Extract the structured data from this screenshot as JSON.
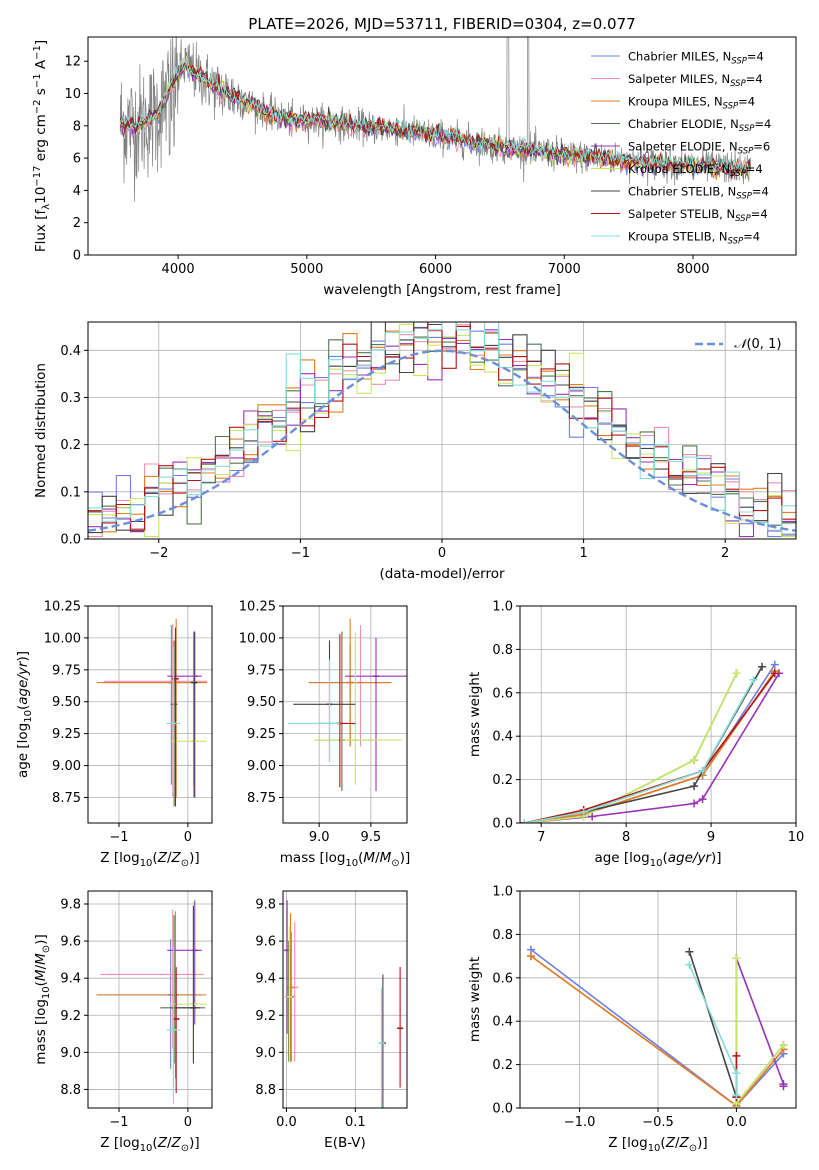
{
  "figure": {
    "title": "PLATE=2026, MJD=53711, FIBERID=0304, z=0.077"
  },
  "colors": {
    "Chabrier MILES": "#6f7fe6",
    "Salpeter MILES": "#f090b0",
    "Kroupa MILES": "#e07e22",
    "Chabrier ELODIE": "#4f7a4f",
    "Salpeter ELODIE": "#9a32b8",
    "Kroupa ELODIE": "#c8e86a",
    "Chabrier STELIB": "#444444",
    "Salpeter STELIB": "#b41414",
    "Kroupa STELIB": "#86dcd8",
    "data": "#808080",
    "normal": "#6a90dc"
  },
  "chart_data": [
    {
      "id": "spectrum",
      "type": "line",
      "title": "PLATE=2026, MJD=53711, FIBERID=0304, z=0.077",
      "xlabel": "wavelength [Angstrom, rest frame]",
      "ylabel": "Flux [f_λ 10^-17 erg cm^-2 s^-1 A^-1]",
      "xlim": [
        3300,
        8800
      ],
      "ylim": [
        0,
        13.5
      ],
      "xticks": [
        4000,
        5000,
        6000,
        7000,
        8000
      ],
      "yticks": [
        0,
        2,
        4,
        6,
        8,
        10,
        12
      ],
      "grid": false,
      "legend_position": "upper right",
      "legend": [
        {
          "label": "Chabrier MILES, N_SSP=4"
        },
        {
          "label": "Salpeter MILES, N_SSP=4"
        },
        {
          "label": "Kroupa MILES, N_SSP=4"
        },
        {
          "label": "Chabrier ELODIE, N_SSP=4"
        },
        {
          "label": "Salpeter ELODIE, N_SSP=6"
        },
        {
          "label": "Kroupa ELODIE, N_SSP=4"
        },
        {
          "label": "Chabrier STELIB, N_SSP=4"
        },
        {
          "label": "Salpeter STELIB, N_SSP=4"
        },
        {
          "label": "Kroupa STELIB, N_SSP=4"
        }
      ],
      "model_continuum": {
        "x": [
          3550,
          3650,
          3750,
          3850,
          3950,
          4050,
          4150,
          4300,
          4500,
          4700,
          4900,
          5100,
          5300,
          5500,
          5700,
          5900,
          6100,
          6300,
          6500,
          6700,
          6900,
          7100,
          7300,
          7500,
          7700,
          7900,
          8100,
          8300,
          8500
        ],
        "y": [
          8.2,
          8.0,
          8.3,
          8.8,
          10.5,
          11.8,
          11.2,
          10.3,
          9.6,
          8.8,
          8.3,
          8.3,
          8.1,
          7.9,
          7.8,
          7.5,
          7.3,
          7.0,
          6.7,
          6.5,
          6.3,
          6.1,
          6.0,
          5.8,
          5.7,
          5.6,
          5.5,
          5.4,
          5.3
        ]
      },
      "data_range": [
        3550,
        8450
      ]
    },
    {
      "id": "residuals",
      "type": "line",
      "xlabel": "(data-model)/error",
      "ylabel": "Normed distribution",
      "xlim": [
        -2.5,
        2.5
      ],
      "ylim": [
        0,
        0.46
      ],
      "xticks": [
        -2,
        -1,
        0,
        1,
        2
      ],
      "yticks": [
        0.0,
        0.1,
        0.2,
        0.3,
        0.4
      ],
      "grid": true,
      "legend_position": "upper right",
      "legend": [
        {
          "label": "N(0,1)"
        }
      ],
      "normal": {
        "mean": 0,
        "sigma": 1
      }
    },
    {
      "id": "age-vs-Z",
      "type": "scatter",
      "xlabel": "Z [log10(Z/Z_sun)]",
      "ylabel": "age [log10(age/yr)]",
      "xlim": [
        -1.45,
        0.35
      ],
      "ylim": [
        8.55,
        10.25
      ],
      "xticks": [
        -1,
        0
      ],
      "yticks": [
        8.75,
        9.0,
        9.25,
        9.5,
        9.75,
        10.0,
        10.25
      ],
      "grid": true,
      "points": [
        {
          "model": "Chabrier MILES",
          "x": -0.24,
          "y": 9.65,
          "xerr": [
            1.0,
            0.45
          ],
          "yerr": [
            0.8,
            0.45
          ]
        },
        {
          "model": "Salpeter MILES",
          "x": -0.22,
          "y": 9.66,
          "xerr": [
            1.0,
            0.5
          ],
          "yerr": [
            0.9,
            0.45
          ]
        },
        {
          "model": "Kroupa MILES",
          "x": -0.17,
          "y": 9.65,
          "xerr": [
            1.15,
            0.45
          ],
          "yerr": [
            0.9,
            0.5
          ]
        },
        {
          "model": "Chabrier ELODIE",
          "x": -0.2,
          "y": 9.48,
          "xerr": [
            0.05,
            0.05
          ],
          "yerr": [
            0.8,
            0.5
          ]
        },
        {
          "model": "Salpeter ELODIE",
          "x": 0.1,
          "y": 9.7,
          "xerr": [
            0.4,
            0.1
          ],
          "yerr": [
            0.95,
            0.35
          ]
        },
        {
          "model": "Kroupa ELODIE",
          "x": 0.08,
          "y": 9.19,
          "xerr": [
            0.35,
            0.2
          ],
          "yerr": [
            0.35,
            0.85
          ]
        },
        {
          "model": "Chabrier STELIB",
          "x": 0.09,
          "y": 9.65,
          "xerr": [
            0.05,
            0.05
          ],
          "yerr": [
            0.9,
            0.4
          ]
        },
        {
          "model": "Salpeter STELIB",
          "x": -0.18,
          "y": 9.68,
          "xerr": [
            0.05,
            0.05
          ],
          "yerr": [
            1.0,
            0.4
          ]
        },
        {
          "model": "Kroupa STELIB",
          "x": -0.21,
          "y": 9.33,
          "xerr": [
            0.1,
            0.1
          ],
          "yerr": [
            0.55,
            0.6
          ]
        }
      ]
    },
    {
      "id": "age-vs-mass",
      "type": "scatter",
      "xlabel": "mass [log10(M/M_sun)]",
      "ylabel": "",
      "xlim": [
        8.65,
        9.85
      ],
      "ylim": [
        8.55,
        10.25
      ],
      "xticks": [
        9.0,
        9.5
      ],
      "yticks": [
        8.75,
        9.0,
        9.25,
        9.5,
        9.75,
        10.0,
        10.25
      ],
      "grid": true,
      "points": [
        {
          "model": "Chabrier MILES",
          "x": 9.3,
          "y": 9.65,
          "xerr": [
            0.4,
            0.35
          ],
          "yerr": [
            0.5,
            0.3
          ]
        },
        {
          "model": "Salpeter MILES",
          "x": 9.4,
          "y": 9.65,
          "xerr": [
            0.35,
            0.3
          ],
          "yerr": [
            0.5,
            0.45
          ]
        },
        {
          "model": "Kroupa MILES",
          "x": 9.3,
          "y": 9.65,
          "xerr": [
            0.4,
            0.4
          ],
          "yerr": [
            0.5,
            0.5
          ]
        },
        {
          "model": "Chabrier ELODIE",
          "x": 9.22,
          "y": 9.2,
          "xerr": [
            0.25,
            0.3
          ],
          "yerr": [
            0.4,
            0.85
          ]
        },
        {
          "model": "Salpeter ELODIE",
          "x": 9.55,
          "y": 9.7,
          "xerr": [
            0.3,
            0.3
          ],
          "yerr": [
            0.9,
            0.3
          ]
        },
        {
          "model": "Kroupa ELODIE",
          "x": 9.35,
          "y": 9.2,
          "xerr": [
            0.4,
            0.45
          ],
          "yerr": [
            0.35,
            0.85
          ]
        },
        {
          "model": "Chabrier STELIB",
          "x": 9.1,
          "y": 9.48,
          "xerr": [
            0.35,
            0.25
          ],
          "yerr": [
            0.45,
            0.5
          ]
        },
        {
          "model": "Salpeter STELIB",
          "x": 9.2,
          "y": 9.33,
          "xerr": [
            0.2,
            0.15
          ],
          "yerr": [
            0.5,
            0.7
          ]
        },
        {
          "model": "Kroupa STELIB",
          "x": 9.1,
          "y": 9.33,
          "xerr": [
            0.4,
            0.1
          ],
          "yerr": [
            0.3,
            0.5
          ]
        }
      ]
    },
    {
      "id": "weight-vs-age",
      "type": "line",
      "xlabel": "age [log10(age/yr)]",
      "ylabel": "mass weight",
      "xlim": [
        6.75,
        10.0
      ],
      "ylim": [
        0,
        1.0
      ],
      "xticks": [
        7,
        8,
        9,
        10
      ],
      "yticks": [
        0.0,
        0.2,
        0.4,
        0.6,
        0.8,
        1.0
      ],
      "grid": true,
      "series": [
        {
          "model": "Chabrier MILES",
          "x": [
            6.8,
            7.5,
            8.9,
            9.75
          ],
          "y": [
            0.0,
            0.04,
            0.22,
            0.73
          ]
        },
        {
          "model": "Salpeter MILES",
          "x": [
            6.8,
            7.5,
            8.9,
            9.75
          ],
          "y": [
            0.0,
            0.04,
            0.22,
            0.7
          ]
        },
        {
          "model": "Kroupa MILES",
          "x": [
            6.8,
            7.5,
            8.9,
            9.75
          ],
          "y": [
            0.0,
            0.04,
            0.22,
            0.7
          ]
        },
        {
          "model": "Chabrier ELODIE",
          "x": [
            6.8,
            7.5,
            8.8,
            9.3
          ],
          "y": [
            0.0,
            0.03,
            0.29,
            0.69
          ]
        },
        {
          "model": "Salpeter ELODIE",
          "x": [
            6.8,
            7.6,
            8.8,
            8.9,
            9.8
          ],
          "y": [
            0.0,
            0.03,
            0.09,
            0.11,
            0.69
          ]
        },
        {
          "model": "Kroupa ELODIE",
          "x": [
            6.8,
            7.5,
            8.8,
            9.3
          ],
          "y": [
            0.0,
            0.03,
            0.29,
            0.69
          ]
        },
        {
          "model": "Chabrier STELIB",
          "x": [
            6.8,
            7.5,
            8.8,
            9.6
          ],
          "y": [
            0.0,
            0.05,
            0.17,
            0.72
          ]
        },
        {
          "model": "Salpeter STELIB",
          "x": [
            6.8,
            7.5,
            8.9,
            9.75
          ],
          "y": [
            0.0,
            0.06,
            0.24,
            0.69
          ]
        },
        {
          "model": "Kroupa STELIB",
          "x": [
            6.8,
            7.5,
            8.9,
            9.5
          ],
          "y": [
            0.0,
            0.05,
            0.24,
            0.66
          ]
        }
      ]
    },
    {
      "id": "mass-vs-Z",
      "type": "scatter",
      "xlabel": "Z [log10(Z/Z_sun)]",
      "ylabel": "mass [log10(M/M_sun)]",
      "xlim": [
        -1.45,
        0.35
      ],
      "ylim": [
        8.7,
        9.87
      ],
      "xticks": [
        -1,
        0
      ],
      "yticks": [
        8.8,
        9.0,
        9.2,
        9.4,
        9.6,
        9.8
      ],
      "grid": true,
      "points": [
        {
          "model": "Chabrier MILES",
          "x": -0.25,
          "y": 9.31,
          "xerr": [
            1.05,
            0.45
          ],
          "yerr": [
            0.4,
            0.3
          ]
        },
        {
          "model": "Salpeter MILES",
          "x": -0.22,
          "y": 9.42,
          "xerr": [
            1.05,
            0.45
          ],
          "yerr": [
            0.4,
            0.35
          ]
        },
        {
          "model": "Kroupa MILES",
          "x": -0.18,
          "y": 9.31,
          "xerr": [
            1.15,
            0.45
          ],
          "yerr": [
            0.45,
            0.45
          ]
        },
        {
          "model": "Chabrier ELODIE",
          "x": -0.2,
          "y": 9.24,
          "xerr": [
            0.2,
            0.45
          ],
          "yerr": [
            0.3,
            0.5
          ]
        },
        {
          "model": "Salpeter ELODIE",
          "x": 0.1,
          "y": 9.55,
          "xerr": [
            0.4,
            0.1
          ],
          "yerr": [
            0.4,
            0.27
          ]
        },
        {
          "model": "Kroupa ELODIE",
          "x": 0.08,
          "y": 9.26,
          "xerr": [
            0.35,
            0.2
          ],
          "yerr": [
            0.3,
            0.55
          ]
        },
        {
          "model": "Chabrier STELIB",
          "x": 0.08,
          "y": 9.24,
          "xerr": [
            0.25,
            0.1
          ],
          "yerr": [
            0.3,
            0.55
          ]
        },
        {
          "model": "Salpeter STELIB",
          "x": -0.17,
          "y": 9.18,
          "xerr": [
            0.05,
            0.05
          ],
          "yerr": [
            0.4,
            0.28
          ]
        },
        {
          "model": "Kroupa STELIB",
          "x": -0.21,
          "y": 9.12,
          "xerr": [
            0.1,
            0.1
          ],
          "yerr": [
            0.4,
            0.45
          ]
        }
      ]
    },
    {
      "id": "mass-vs-EBV",
      "type": "scatter",
      "xlabel": "E(B-V)",
      "ylabel": "",
      "xlim": [
        -0.005,
        0.175
      ],
      "ylim": [
        8.7,
        9.87
      ],
      "xticks": [
        0.0,
        0.1
      ],
      "yticks": [
        8.8,
        9.0,
        9.2,
        9.4,
        9.6,
        9.8
      ],
      "grid": true,
      "points": [
        {
          "model": "Chabrier MILES",
          "x": 0.007,
          "y": 9.3,
          "yerr": [
            0.35,
            0.35
          ]
        },
        {
          "model": "Salpeter MILES",
          "x": 0.012,
          "y": 9.35,
          "yerr": [
            0.4,
            0.35
          ]
        },
        {
          "model": "Kroupa MILES",
          "x": 0.006,
          "y": 9.35,
          "yerr": [
            0.4,
            0.4
          ]
        },
        {
          "model": "Chabrier ELODIE",
          "x": 0.003,
          "y": 9.3,
          "yerr": [
            0.35,
            0.3
          ]
        },
        {
          "model": "Salpeter ELODIE",
          "x": 0.001,
          "y": 9.55,
          "yerr": [
            0.45,
            0.27
          ]
        },
        {
          "model": "Kroupa ELODIE",
          "x": 0.004,
          "y": 9.3,
          "yerr": [
            0.35,
            0.38
          ]
        },
        {
          "model": "Chabrier STELIB",
          "x": 0.14,
          "y": 9.05,
          "yerr": [
            0.35,
            0.37
          ]
        },
        {
          "model": "Salpeter STELIB",
          "x": 0.165,
          "y": 9.13,
          "yerr": [
            0.32,
            0.33
          ]
        },
        {
          "model": "Kroupa STELIB",
          "x": 0.138,
          "y": 9.05,
          "yerr": [
            0.35,
            0.3
          ]
        }
      ]
    },
    {
      "id": "weight-vs-Z",
      "type": "line",
      "xlabel": "Z [log10(Z/Z_sun)]",
      "ylabel": "mass weight",
      "xlim": [
        -1.38,
        0.38
      ],
      "ylim": [
        0,
        1.0
      ],
      "xticks": [
        -1.0,
        -0.5,
        0.0
      ],
      "yticks": [
        0.0,
        0.2,
        0.4,
        0.6,
        0.8,
        1.0
      ],
      "grid": true,
      "series": [
        {
          "model": "Chabrier MILES",
          "x": [
            -1.31,
            0.0,
            0.3
          ],
          "y": [
            0.73,
            0.01,
            0.25
          ]
        },
        {
          "model": "Salpeter MILES",
          "x": [
            -1.31,
            0.0,
            0.3
          ],
          "y": [
            0.7,
            0.01,
            0.27
          ]
        },
        {
          "model": "Kroupa MILES",
          "x": [
            -1.31,
            0.0,
            0.3
          ],
          "y": [
            0.7,
            0.01,
            0.27
          ]
        },
        {
          "model": "Chabrier ELODIE",
          "x": [
            0.0,
            0.0,
            0.3
          ],
          "y": [
            0.69,
            0.02,
            0.29
          ]
        },
        {
          "model": "Salpeter ELODIE",
          "x": [
            0.0,
            0.3,
            0.3
          ],
          "y": [
            0.69,
            0.11,
            0.1
          ]
        },
        {
          "model": "Kroupa ELODIE",
          "x": [
            0.0,
            0.0,
            0.3
          ],
          "y": [
            0.69,
            0.02,
            0.29
          ]
        },
        {
          "model": "Chabrier STELIB",
          "x": [
            -0.3,
            0.0
          ],
          "y": [
            0.72,
            0.05
          ]
        },
        {
          "model": "Salpeter STELIB",
          "x": [
            0.0,
            0.0
          ],
          "y": [
            0.24,
            0.05
          ]
        },
        {
          "model": "Kroupa STELIB",
          "x": [
            -0.3,
            0.0,
            0.0
          ],
          "y": [
            0.66,
            0.16,
            0.06
          ]
        }
      ]
    }
  ]
}
